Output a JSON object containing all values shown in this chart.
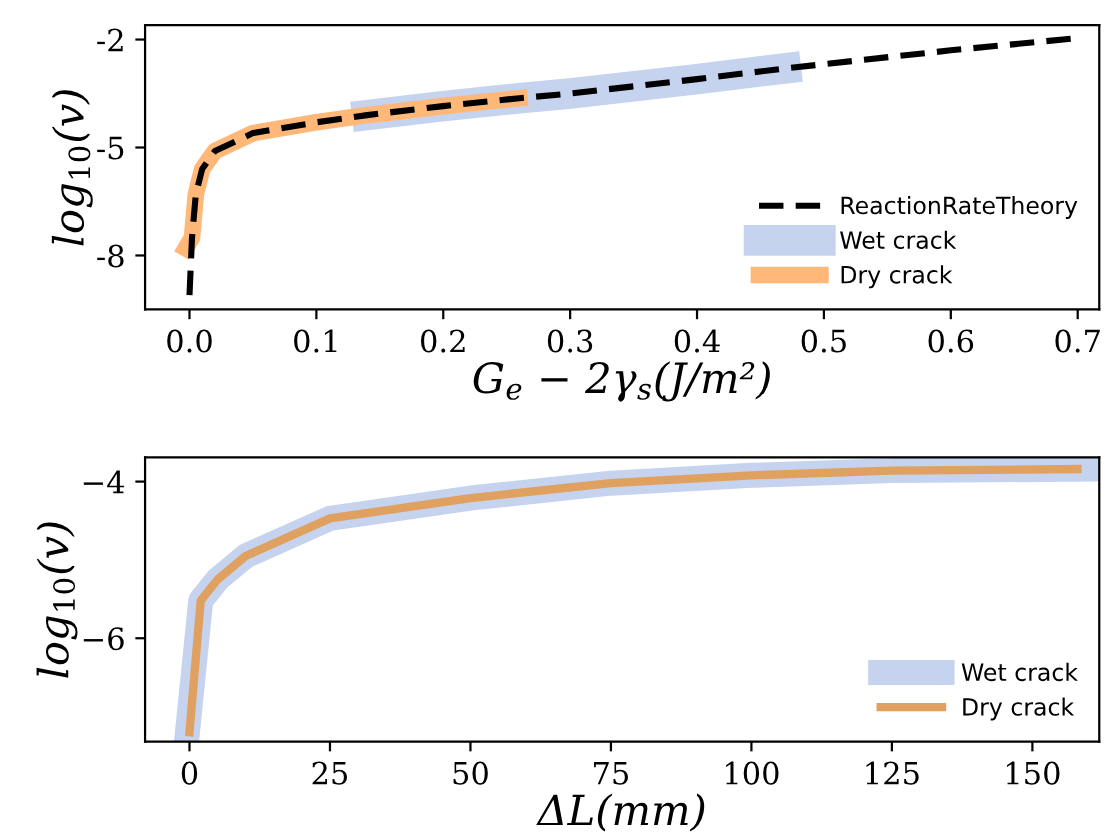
{
  "chart_data": [
    {
      "type": "line",
      "xlabel": "G$_{e}$ − 2γ$_{s}$(J/m²)",
      "ylabel": "log$_{10}$(v)",
      "xlim": [
        -0.035,
        0.717
      ],
      "ylim": [
        -9.5,
        -1.6
      ],
      "xticks": [
        {
          "value": 0.0,
          "label": "0.0"
        },
        0.1,
        0.2,
        0.3,
        0.4,
        0.5,
        0.6,
        0.7
      ],
      "yticks": [
        {
          "value": -2,
          "label": "-2"
        },
        {
          "value": -5,
          "label": "-5"
        },
        {
          "value": -8,
          "label": "-8"
        }
      ],
      "legend": "bottom right",
      "grid": false,
      "series": [
        {
          "name": "ReactionRateTheory",
          "color": "#000000",
          "line_style": "dashed",
          "x": [
            0,
            0.002,
            0.005,
            0.01,
            0.02,
            0.05,
            0.1,
            0.14,
            0.2,
            0.26,
            0.3,
            0.4,
            0.47,
            0.6,
            0.7
          ],
          "values": [
            -9.1,
            -7.5,
            -6.3,
            -5.6,
            -5.1,
            -4.6,
            -4.3,
            -4.1,
            -3.85,
            -3.63,
            -3.5,
            -3.1,
            -2.8,
            -2.3,
            -1.96
          ]
        },
        {
          "name": "Wet crack",
          "color": "#c5d3ee",
          "line_style": "solid",
          "x": [
            0.14,
            0.2,
            0.26,
            0.3,
            0.4,
            0.47
          ],
          "values": [
            -4.1,
            -3.85,
            -3.63,
            -3.5,
            -3.1,
            -2.8
          ]
        },
        {
          "name": "Dry crack",
          "color": "#ffb878",
          "line_style": "solid",
          "x": [
            -0.003,
            0.002,
            0.005,
            0.01,
            0.02,
            0.05,
            0.1,
            0.14,
            0.2,
            0.26
          ],
          "values": [
            -7.8,
            -7.5,
            -6.3,
            -5.6,
            -5.1,
            -4.6,
            -4.3,
            -4.1,
            -3.85,
            -3.63
          ]
        }
      ]
    },
    {
      "type": "line",
      "xlabel": "ΔL(mm)",
      "ylabel": "log$_{10}$(v)",
      "xlim": [
        -7.9,
        161.9
      ],
      "ylim": [
        -7.32,
        -3.69
      ],
      "xticks": [
        0,
        25,
        50,
        75,
        100,
        125,
        150
      ],
      "yticks": [
        {
          "value": -4,
          "label": "−4"
        },
        {
          "value": -6,
          "label": "−6"
        }
      ],
      "legend": "bottom right",
      "grid": false,
      "series": [
        {
          "name": "Wet crack",
          "color": "#c5d3ee",
          "line_style": "solid",
          "x": [
            -0.5,
            2,
            5,
            10,
            25,
            50,
            75,
            100,
            125,
            160
          ],
          "values": [
            -7.3,
            -5.52,
            -5.25,
            -4.95,
            -4.47,
            -4.21,
            -4.02,
            -3.92,
            -3.86,
            -3.84
          ]
        },
        {
          "name": "Dry crack",
          "color": "#e0a060",
          "line_style": "solid",
          "x": [
            0,
            2,
            5,
            10,
            25,
            50,
            75,
            100,
            125,
            158
          ],
          "values": [
            -7.2,
            -5.52,
            -5.25,
            -4.95,
            -4.47,
            -4.21,
            -4.02,
            -3.92,
            -3.86,
            -3.84
          ]
        }
      ]
    }
  ]
}
